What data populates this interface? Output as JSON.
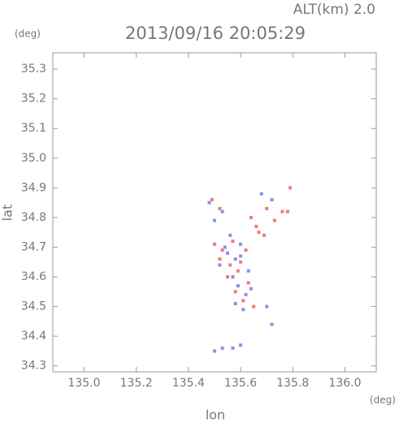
{
  "chart_data": {
    "type": "scatter",
    "title": "2013/09/16 20:05:29",
    "subtitle": "ALT(km) 2.0",
    "x_label": "lon",
    "y_label": "lat",
    "x_unit": "(deg)",
    "y_unit": "(deg)",
    "xlim": [
      134.88,
      136.12
    ],
    "ylim": [
      34.28,
      35.355
    ],
    "xticks": [
      {
        "value": 135.0,
        "label": "135.0"
      },
      135.2,
      135.4,
      135.6,
      135.8,
      {
        "value": 136.0,
        "label": "136.0"
      }
    ],
    "yticks": [
      34.3,
      34.4,
      34.5,
      34.6,
      34.7,
      34.8,
      34.9,
      {
        "value": 35.0,
        "label": "35.0"
      },
      35.1,
      35.2,
      35.3
    ],
    "series": [
      {
        "color": "#f07a7a",
        "x": [
          135.49,
          135.52,
          135.64,
          135.66,
          135.7,
          135.73,
          135.76,
          135.78,
          135.79,
          135.5,
          135.53,
          135.57,
          135.62,
          135.6,
          135.55,
          135.63,
          135.58,
          135.61,
          135.65,
          135.59,
          135.67,
          135.69,
          135.52,
          135.56
        ],
        "values": [
          34.86,
          34.83,
          34.8,
          34.77,
          34.83,
          34.79,
          34.82,
          34.82,
          34.9,
          34.71,
          34.69,
          34.72,
          34.69,
          34.65,
          34.6,
          34.58,
          34.55,
          34.52,
          34.5,
          34.62,
          34.75,
          34.74,
          34.66,
          34.64
        ]
      },
      {
        "color": "#8c8cf0",
        "x": [
          135.48,
          135.5,
          135.53,
          135.68,
          135.72,
          135.55,
          135.58,
          135.6,
          135.63,
          135.57,
          135.59,
          135.62,
          135.61,
          135.64,
          135.54,
          135.56,
          135.6,
          135.58,
          135.7,
          135.72,
          135.5,
          135.53,
          135.57,
          135.6,
          135.52
        ],
        "values": [
          34.85,
          34.79,
          34.82,
          34.88,
          34.86,
          34.68,
          34.66,
          34.67,
          34.62,
          34.6,
          34.57,
          34.54,
          34.49,
          34.56,
          34.7,
          34.74,
          34.71,
          34.51,
          34.5,
          34.44,
          34.35,
          34.36,
          34.36,
          34.37,
          34.64
        ]
      }
    ]
  }
}
